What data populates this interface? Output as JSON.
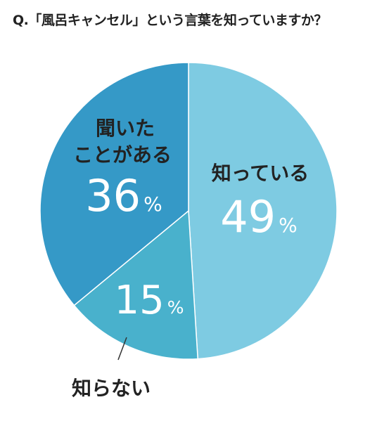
{
  "title": "Q.「風呂キャンセル」という言葉を知っていますか？",
  "chart_data": {
    "type": "pie",
    "title": "Q.「風呂キャンセル」という言葉を知っていますか？",
    "percent_sign": "%",
    "slices": [
      {
        "label": "知っている",
        "value": 49,
        "color": "#7ecbe2"
      },
      {
        "label": "知らない",
        "value": 15,
        "color": "#49b1cc"
      },
      {
        "label": "聞いた\nことがある",
        "value": 36,
        "color": "#3599c7"
      }
    ]
  }
}
